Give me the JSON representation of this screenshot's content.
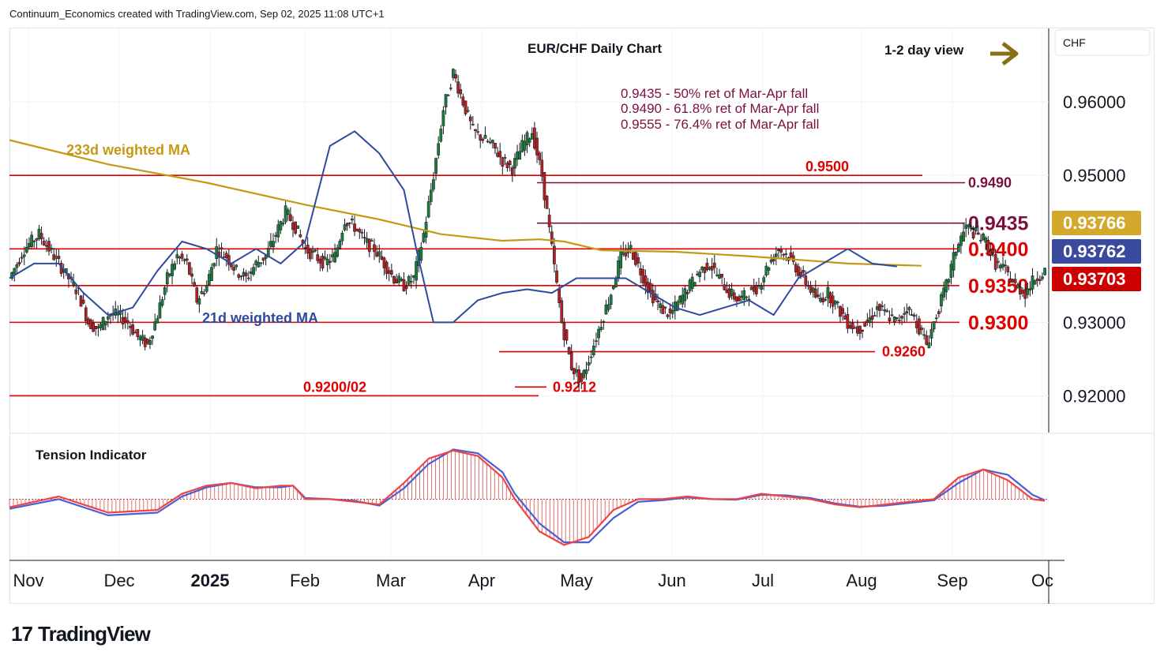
{
  "header": {
    "attribution": "Continuum_Economics created with TradingView.com, Sep 02, 2025 11:08 UTC+1"
  },
  "brand": {
    "logo_text": "TradingView",
    "logo_mark": "17"
  },
  "colors": {
    "up": "#1e7b3a",
    "down": "#b22222",
    "wma233": "#c49a14",
    "wma21": "#2d4a9e",
    "support_resistance": "#e00000",
    "retracement": "#7b1040",
    "arrow": "#8b6e1a",
    "badge_ma233": "#d4a82b",
    "badge_ma21": "#3a4a9f",
    "badge_price": "#cc0000"
  },
  "chart_data": [
    {
      "type": "candlestick",
      "title": "EUR/CHF Daily Chart",
      "currency_label": "CHF",
      "view_label": "1-2 day view",
      "view_icon": "arrow-right-icon",
      "ylim": [
        0.915,
        0.97
      ],
      "y_ticks": [
        "0.96000",
        "0.95000",
        "0.93000",
        "0.92000"
      ],
      "x_labels": [
        "Nov",
        "Dec",
        "2025",
        "Feb",
        "Mar",
        "Apr",
        "May",
        "Jun",
        "Jul",
        "Aug",
        "Sep",
        "Oc"
      ],
      "grid": true,
      "price_badges": [
        {
          "label": "0.93766",
          "value": 0.93766,
          "kind": "ma233"
        },
        {
          "label": "0.93762",
          "value": 0.93762,
          "kind": "ma21"
        },
        {
          "label": "0.93703",
          "value": 0.93703,
          "kind": "price"
        }
      ],
      "levels": [
        {
          "label": "0.9500",
          "value": 0.95,
          "kind": "support_resistance",
          "label_pos": "inline"
        },
        {
          "label": "0.9490",
          "value": 0.949,
          "kind": "retracement",
          "label_pos": "right"
        },
        {
          "label": "0.9435",
          "value": 0.9435,
          "kind": "retracement",
          "label_pos": "right"
        },
        {
          "label": "0.9400",
          "value": 0.94,
          "kind": "support_resistance",
          "label_pos": "right"
        },
        {
          "label": "0.9350",
          "value": 0.935,
          "kind": "support_resistance",
          "label_pos": "right"
        },
        {
          "label": "0.9300",
          "value": 0.93,
          "kind": "support_resistance",
          "label_pos": "right"
        },
        {
          "label": "0.9260",
          "value": 0.926,
          "kind": "support_resistance",
          "label_pos": "inline"
        },
        {
          "label": "0.9212",
          "value": 0.9212,
          "kind": "support_resistance",
          "label_pos": "inline"
        },
        {
          "label": "0.9200/02",
          "value": 0.92,
          "kind": "support_resistance",
          "label_pos": "inline"
        }
      ],
      "annotations": [
        "0.9435 - 50% ret of Mar-Apr fall",
        "0.9490 - 61.8% ret of Mar-Apr fall",
        "0.9555 - 76.4% ret of Mar-Apr fall"
      ],
      "series": [
        {
          "name": "233d weighted MA",
          "kind": "line",
          "points": [
            [
              0,
              0.9548
            ],
            [
              40,
              0.9515
            ],
            [
              80,
              0.949
            ],
            [
              120,
              0.946
            ],
            [
              150,
              0.944
            ],
            [
              175,
              0.942
            ],
            [
              200,
              0.9411
            ],
            [
              215,
              0.9413
            ],
            [
              225,
              0.941
            ],
            [
              240,
              0.9398
            ],
            [
              270,
              0.9396
            ],
            [
              300,
              0.939
            ],
            [
              320,
              0.9385
            ],
            [
              340,
              0.938
            ],
            [
              370,
              0.9377
            ]
          ]
        },
        {
          "name": "21d weighted MA",
          "kind": "line",
          "points": [
            [
              0,
              0.936
            ],
            [
              10,
              0.938
            ],
            [
              20,
              0.938
            ],
            [
              30,
              0.934
            ],
            [
              40,
              0.931
            ],
            [
              50,
              0.932
            ],
            [
              60,
              0.937
            ],
            [
              70,
              0.941
            ],
            [
              80,
              0.94
            ],
            [
              90,
              0.938
            ],
            [
              100,
              0.94
            ],
            [
              110,
              0.938
            ],
            [
              120,
              0.941
            ],
            [
              130,
              0.954
            ],
            [
              140,
              0.956
            ],
            [
              150,
              0.953
            ],
            [
              160,
              0.948
            ],
            [
              165,
              0.94
            ],
            [
              172,
              0.93
            ],
            [
              180,
              0.93
            ],
            [
              190,
              0.933
            ],
            [
              200,
              0.934
            ],
            [
              210,
              0.9345
            ],
            [
              220,
              0.934
            ],
            [
              230,
              0.936
            ],
            [
              250,
              0.936
            ],
            [
              260,
              0.934
            ],
            [
              270,
              0.932
            ],
            [
              280,
              0.931
            ],
            [
              290,
              0.932
            ],
            [
              300,
              0.933
            ],
            [
              310,
              0.931
            ],
            [
              320,
              0.936
            ],
            [
              330,
              0.938
            ],
            [
              340,
              0.94
            ],
            [
              350,
              0.938
            ],
            [
              360,
              0.9376
            ]
          ]
        },
        {
          "name": "EUR/CHF",
          "kind": "ohlc_path",
          "points": [
            [
              0,
              0.936
            ],
            [
              6,
              0.94
            ],
            [
              12,
              0.942
            ],
            [
              18,
              0.939
            ],
            [
              24,
              0.936
            ],
            [
              28,
              0.934
            ],
            [
              32,
              0.93
            ],
            [
              36,
              0.929
            ],
            [
              40,
              0.931
            ],
            [
              44,
              0.931
            ],
            [
              48,
              0.93
            ],
            [
              52,
              0.928
            ],
            [
              56,
              0.927
            ],
            [
              60,
              0.931
            ],
            [
              64,
              0.936
            ],
            [
              68,
              0.939
            ],
            [
              72,
              0.938
            ],
            [
              76,
              0.933
            ],
            [
              80,
              0.935
            ],
            [
              84,
              0.94
            ],
            [
              88,
              0.939
            ],
            [
              92,
              0.937
            ],
            [
              96,
              0.936
            ],
            [
              100,
              0.938
            ],
            [
              104,
              0.939
            ],
            [
              108,
              0.942
            ],
            [
              112,
              0.945
            ],
            [
              116,
              0.943
            ],
            [
              120,
              0.94
            ],
            [
              124,
              0.939
            ],
            [
              128,
              0.938
            ],
            [
              132,
              0.939
            ],
            [
              136,
              0.944
            ],
            [
              140,
              0.943
            ],
            [
              144,
              0.941
            ],
            [
              148,
              0.94
            ],
            [
              152,
              0.938
            ],
            [
              156,
              0.936
            ],
            [
              160,
              0.935
            ],
            [
              164,
              0.936
            ],
            [
              168,
              0.942
            ],
            [
              172,
              0.95
            ],
            [
              176,
              0.959
            ],
            [
              180,
              0.964
            ],
            [
              184,
              0.96
            ],
            [
              188,
              0.956
            ],
            [
              192,
              0.955
            ],
            [
              196,
              0.954
            ],
            [
              200,
              0.952
            ],
            [
              204,
              0.951
            ],
            [
              208,
              0.954
            ],
            [
              212,
              0.956
            ],
            [
              216,
              0.95
            ],
            [
              220,
              0.94
            ],
            [
              224,
              0.93
            ],
            [
              228,
              0.924
            ],
            [
              232,
              0.922
            ],
            [
              236,
              0.926
            ],
            [
              240,
              0.93
            ],
            [
              244,
              0.934
            ],
            [
              248,
              0.939
            ],
            [
              252,
              0.94
            ],
            [
              256,
              0.937
            ],
            [
              260,
              0.934
            ],
            [
              264,
              0.932
            ],
            [
              268,
              0.931
            ],
            [
              272,
              0.933
            ],
            [
              276,
              0.935
            ],
            [
              280,
              0.937
            ],
            [
              284,
              0.938
            ],
            [
              288,
              0.936
            ],
            [
              292,
              0.934
            ],
            [
              296,
              0.933
            ],
            [
              300,
              0.934
            ],
            [
              304,
              0.935
            ],
            [
              308,
              0.938
            ],
            [
              312,
              0.94
            ],
            [
              316,
              0.939
            ],
            [
              320,
              0.937
            ],
            [
              324,
              0.935
            ],
            [
              328,
              0.933
            ],
            [
              332,
              0.934
            ],
            [
              336,
              0.932
            ],
            [
              340,
              0.93
            ],
            [
              344,
              0.929
            ],
            [
              348,
              0.93
            ],
            [
              352,
              0.932
            ],
            [
              356,
              0.931
            ],
            [
              360,
              0.93
            ],
            [
              364,
              0.932
            ],
            [
              368,
              0.93
            ],
            [
              372,
              0.927
            ],
            [
              376,
              0.931
            ],
            [
              380,
              0.935
            ],
            [
              384,
              0.94
            ],
            [
              388,
              0.943
            ],
            [
              392,
              0.942
            ],
            [
              396,
              0.941
            ],
            [
              400,
              0.938
            ],
            [
              404,
              0.937
            ],
            [
              408,
              0.935
            ],
            [
              412,
              0.934
            ],
            [
              416,
              0.936
            ],
            [
              420,
              0.937
            ]
          ]
        }
      ]
    },
    {
      "type": "oscillator",
      "title": "Tension Indicator",
      "baseline": 0,
      "ylim": [
        -1,
        1
      ],
      "series": [
        {
          "name": "",
          "kind": "fast",
          "points": [
            [
              0,
              -0.15
            ],
            [
              20,
              0.05
            ],
            [
              40,
              -0.25
            ],
            [
              60,
              -0.2
            ],
            [
              70,
              0.1
            ],
            [
              80,
              0.25
            ],
            [
              90,
              0.3
            ],
            [
              100,
              0.2
            ],
            [
              110,
              0.25
            ],
            [
              115,
              0.25
            ],
            [
              120,
              0.0
            ],
            [
              130,
              0.0
            ],
            [
              140,
              -0.05
            ],
            [
              150,
              -0.1
            ],
            [
              160,
              0.3
            ],
            [
              170,
              0.75
            ],
            [
              180,
              0.9
            ],
            [
              190,
              0.8
            ],
            [
              200,
              0.4
            ],
            [
              205,
              0.0
            ],
            [
              215,
              -0.6
            ],
            [
              225,
              -0.85
            ],
            [
              235,
              -0.7
            ],
            [
              245,
              -0.2
            ],
            [
              255,
              0.0
            ],
            [
              265,
              0.0
            ],
            [
              275,
              0.05
            ],
            [
              285,
              0.0
            ],
            [
              295,
              0.0
            ],
            [
              305,
              0.1
            ],
            [
              315,
              0.05
            ],
            [
              325,
              0.0
            ],
            [
              335,
              -0.1
            ],
            [
              345,
              -0.15
            ],
            [
              355,
              -0.1
            ],
            [
              365,
              -0.05
            ],
            [
              375,
              0.0
            ],
            [
              385,
              0.4
            ],
            [
              395,
              0.55
            ],
            [
              405,
              0.35
            ],
            [
              415,
              0.0
            ],
            [
              420,
              -0.03
            ]
          ]
        },
        {
          "name": "",
          "kind": "slow",
          "points": [
            [
              0,
              -0.18
            ],
            [
              20,
              0.0
            ],
            [
              40,
              -0.3
            ],
            [
              60,
              -0.25
            ],
            [
              70,
              0.05
            ],
            [
              80,
              0.22
            ],
            [
              90,
              0.3
            ],
            [
              100,
              0.22
            ],
            [
              110,
              0.22
            ],
            [
              115,
              0.25
            ],
            [
              120,
              0.02
            ],
            [
              130,
              0.0
            ],
            [
              140,
              -0.03
            ],
            [
              150,
              -0.12
            ],
            [
              160,
              0.2
            ],
            [
              170,
              0.65
            ],
            [
              180,
              0.92
            ],
            [
              190,
              0.85
            ],
            [
              200,
              0.5
            ],
            [
              205,
              0.1
            ],
            [
              215,
              -0.45
            ],
            [
              225,
              -0.8
            ],
            [
              235,
              -0.8
            ],
            [
              245,
              -0.35
            ],
            [
              255,
              -0.05
            ],
            [
              265,
              -0.02
            ],
            [
              275,
              0.03
            ],
            [
              285,
              0.0
            ],
            [
              295,
              -0.01
            ],
            [
              305,
              0.08
            ],
            [
              315,
              0.07
            ],
            [
              325,
              0.02
            ],
            [
              335,
              -0.08
            ],
            [
              345,
              -0.14
            ],
            [
              355,
              -0.12
            ],
            [
              365,
              -0.07
            ],
            [
              375,
              -0.02
            ],
            [
              385,
              0.3
            ],
            [
              395,
              0.55
            ],
            [
              405,
              0.45
            ],
            [
              415,
              0.08
            ],
            [
              420,
              -0.02
            ]
          ]
        }
      ]
    }
  ]
}
